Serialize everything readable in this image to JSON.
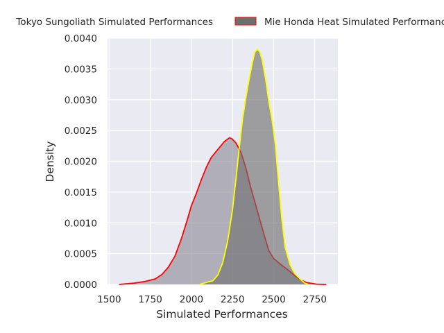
{
  "chart_data": {
    "type": "area",
    "xlabel": "Simulated Performances",
    "ylabel": "Density",
    "xlim": [
      1490,
      2890
    ],
    "ylim": [
      0,
      0.004
    ],
    "x_ticks": [
      1500,
      1750,
      2000,
      2250,
      2500,
      2750
    ],
    "y_ticks": [
      0.0,
      0.0005,
      0.001,
      0.0015,
      0.002,
      0.0025,
      0.003,
      0.0035,
      0.004
    ],
    "x_tick_labels": [
      "1500",
      "1750",
      "2000",
      "2250",
      "2500",
      "2750"
    ],
    "y_tick_labels": [
      "0.0000",
      "0.0005",
      "0.0010",
      "0.0015",
      "0.0020",
      "0.0025",
      "0.0030",
      "0.0035",
      "0.0040"
    ],
    "grid": true,
    "legend_position": "top (above plot, clipped at edges)",
    "background_color": "#eaeaf2",
    "series": [
      {
        "name": "Tokyo Sungoliath Simulated Performances",
        "line_color": "#ff0000",
        "fill_color": "#8c8a96",
        "fill_opacity": 0.62,
        "x": [
          1560,
          1650,
          1720,
          1780,
          1820,
          1860,
          1900,
          1940,
          1975,
          2000,
          2030,
          2060,
          2090,
          2120,
          2160,
          2200,
          2230,
          2245,
          2270,
          2300,
          2330,
          2360,
          2400,
          2440,
          2470,
          2500,
          2540,
          2580,
          2620,
          2660,
          2700,
          2760,
          2820
        ],
        "y": [
          0.0,
          2e-05,
          5e-05,
          9e-05,
          0.00016,
          0.00028,
          0.00046,
          0.00075,
          0.00105,
          0.00128,
          0.00148,
          0.0017,
          0.0019,
          0.00206,
          0.00219,
          0.00232,
          0.00238,
          0.00237,
          0.0023,
          0.00215,
          0.0019,
          0.00158,
          0.0012,
          0.00082,
          0.00055,
          0.00042,
          0.00033,
          0.00025,
          0.00016,
          8e-05,
          3e-05,
          5e-06,
          0.0
        ]
      },
      {
        "name": "Mie Honda Heat Simulated Performances",
        "line_color": "#ffff00",
        "fill_color": "#6e6e6e",
        "fill_opacity": 0.62,
        "legend_edge_color": "#ff0000",
        "x": [
          2050,
          2100,
          2130,
          2160,
          2190,
          2220,
          2250,
          2270,
          2290,
          2310,
          2330,
          2350,
          2370,
          2385,
          2400,
          2415,
          2430,
          2450,
          2470,
          2490,
          2510,
          2530,
          2550,
          2570,
          2600,
          2630,
          2660,
          2690,
          2710
        ],
        "y": [
          0.0,
          4e-05,
          6e-05,
          0.00015,
          0.00035,
          0.0007,
          0.00122,
          0.0017,
          0.0022,
          0.00268,
          0.00302,
          0.00332,
          0.0036,
          0.00377,
          0.00382,
          0.00378,
          0.00365,
          0.00335,
          0.00298,
          0.00268,
          0.00228,
          0.00165,
          0.00105,
          0.0006,
          0.00032,
          0.00017,
          9e-05,
          2e-05,
          0.0
        ]
      }
    ]
  }
}
